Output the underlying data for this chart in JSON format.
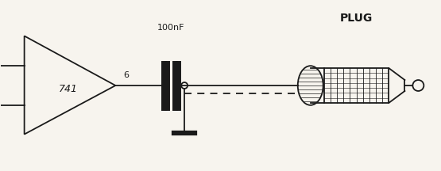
{
  "bg_color": "#f7f4ee",
  "line_color": "#1a1a1a",
  "plug_label": "PLUG",
  "cap_label": "100nF",
  "amp_label": "741",
  "pin_label": "6"
}
